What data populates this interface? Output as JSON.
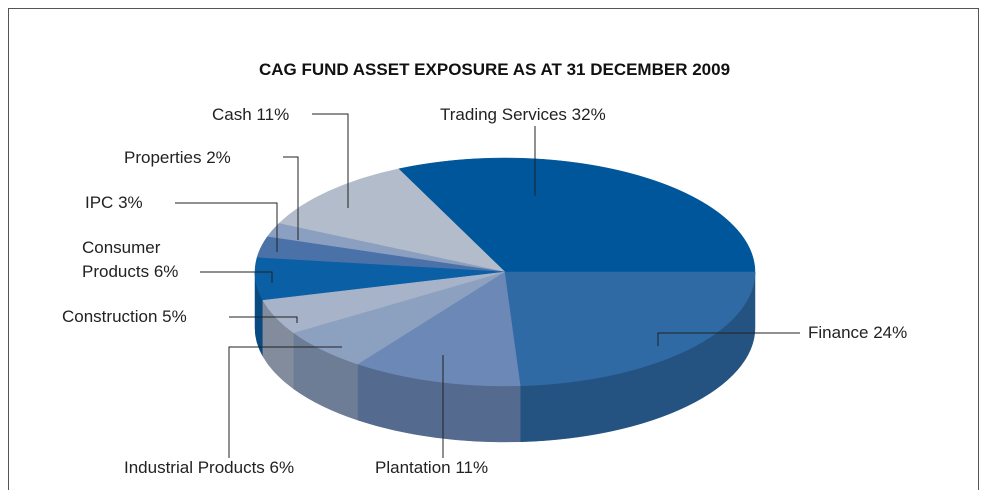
{
  "chart_data": {
    "type": "pie",
    "title": "CAG FUND ASSET EXPOSURE AS AT 31 DECEMBER 2009",
    "categories": [
      "Trading Services",
      "Cash",
      "Properties",
      "IPC",
      "Consumer Products",
      "Construction",
      "Industrial Products",
      "Plantation",
      "Finance"
    ],
    "values": [
      32,
      11,
      2,
      3,
      6,
      5,
      6,
      11,
      24
    ],
    "value_labels": [
      "32%",
      "11%",
      "2%",
      "3%",
      "6%",
      "5%",
      "6%",
      "11%",
      "24%"
    ],
    "colors": [
      "#00569a",
      "#b3bccb",
      "#8b9fc0",
      "#4b72a8",
      "#0b5fa5",
      "#a7b3c8",
      "#8ca0c0",
      "#6c88b6",
      "#2f6aa5"
    ]
  }
}
